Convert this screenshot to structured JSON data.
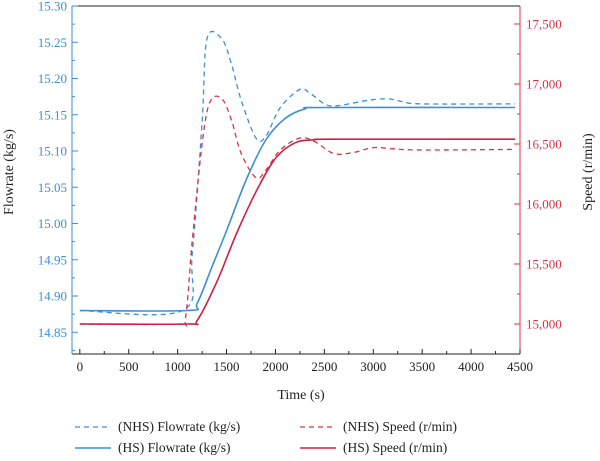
{
  "chart_data": {
    "type": "line",
    "xlabel": "Time (s)",
    "ylabel_left": "Flowrate (kg/s)",
    "ylabel_right": "Speed (r/min)",
    "xlim": [
      -80,
      4500
    ],
    "ylim_left": [
      14.82,
      15.3
    ],
    "ylim_right": [
      14750,
      17650
    ],
    "x_ticks": [
      0,
      500,
      1000,
      1500,
      2000,
      2500,
      3000,
      3500,
      4000,
      4500
    ],
    "x_tick_labels": [
      "0",
      "500",
      "1000",
      "1500",
      "2000",
      "2500",
      "3000",
      "3500",
      "4000",
      "4500"
    ],
    "y_left_ticks": [
      14.85,
      14.9,
      14.95,
      15.0,
      15.05,
      15.1,
      15.15,
      15.2,
      15.25,
      15.3
    ],
    "y_left_tick_labels": [
      "14.85",
      "14.90",
      "14.95",
      "15.00",
      "15.05",
      "15.10",
      "15.15",
      "15.20",
      "15.25",
      "15.30"
    ],
    "y_right_ticks": [
      15000,
      15500,
      16000,
      16500,
      17000,
      17500
    ],
    "y_right_tick_labels": [
      "15,000",
      "15,500",
      "16,000",
      "16,500",
      "17,000",
      "17,500"
    ],
    "grid": false,
    "legend_position": "bottom",
    "colors": {
      "flow": "#3a8fd9",
      "speed": "#dd3344",
      "axis": "#222222"
    },
    "series": [
      {
        "name": "(NHS) Flowrate (kg/s)",
        "axis": "left",
        "style": "dashed",
        "color": "#3a8fd9",
        "points": [
          [
            0,
            14.88
          ],
          [
            1050,
            14.88
          ],
          [
            1150,
            14.96
          ],
          [
            1250,
            15.14
          ],
          [
            1300,
            15.255
          ],
          [
            1450,
            15.255
          ],
          [
            1550,
            15.22
          ],
          [
            1650,
            15.17
          ],
          [
            1800,
            15.118
          ],
          [
            1900,
            15.12
          ],
          [
            2050,
            15.16
          ],
          [
            2250,
            15.185
          ],
          [
            2350,
            15.18
          ],
          [
            2500,
            15.165
          ],
          [
            2600,
            15.162
          ],
          [
            2750,
            15.165
          ],
          [
            2950,
            15.17
          ],
          [
            3150,
            15.172
          ],
          [
            3300,
            15.168
          ],
          [
            3500,
            15.165
          ],
          [
            4450,
            15.165
          ]
        ]
      },
      {
        "name": "(NHS) Speed (r/min)",
        "axis": "right",
        "style": "dashed",
        "color": "#dd3344",
        "points": [
          [
            0,
            15000
          ],
          [
            1000,
            15000
          ],
          [
            1080,
            15050
          ],
          [
            1150,
            15700
          ],
          [
            1250,
            16500
          ],
          [
            1330,
            16850
          ],
          [
            1450,
            16880
          ],
          [
            1550,
            16700
          ],
          [
            1650,
            16420
          ],
          [
            1800,
            16220
          ],
          [
            1900,
            16280
          ],
          [
            2050,
            16450
          ],
          [
            2250,
            16550
          ],
          [
            2400,
            16520
          ],
          [
            2600,
            16420
          ],
          [
            2800,
            16430
          ],
          [
            3000,
            16470
          ],
          [
            3200,
            16460
          ],
          [
            3500,
            16450
          ],
          [
            4450,
            16455
          ]
        ]
      },
      {
        "name": "(HS) Flowrate (kg/s)",
        "axis": "left",
        "style": "solid",
        "color": "#3a8fd9",
        "points": [
          [
            0,
            14.88
          ],
          [
            1100,
            14.88
          ],
          [
            1200,
            14.89
          ],
          [
            1350,
            14.94
          ],
          [
            1500,
            14.99
          ],
          [
            1700,
            15.06
          ],
          [
            1900,
            15.115
          ],
          [
            2100,
            15.145
          ],
          [
            2300,
            15.158
          ],
          [
            2500,
            15.16
          ],
          [
            4450,
            15.16
          ]
        ]
      },
      {
        "name": "(HS) Speed (r/min)",
        "axis": "right",
        "style": "solid",
        "color": "#cc2244",
        "points": [
          [
            0,
            15000
          ],
          [
            1100,
            15000
          ],
          [
            1200,
            15030
          ],
          [
            1400,
            15350
          ],
          [
            1600,
            15750
          ],
          [
            1800,
            16100
          ],
          [
            2000,
            16380
          ],
          [
            2200,
            16510
          ],
          [
            2400,
            16535
          ],
          [
            2600,
            16540
          ],
          [
            4450,
            16540
          ]
        ]
      }
    ],
    "legend": [
      {
        "label": "(NHS) Flowrate (kg/s)",
        "style": "dashed",
        "color": "#3a8fd9"
      },
      {
        "label": "(NHS) Speed (r/min)",
        "style": "dashed",
        "color": "#dd3344"
      },
      {
        "label": "(HS) Flowrate (kg/s)",
        "style": "solid",
        "color": "#3a8fd9"
      },
      {
        "label": "(HS) Speed (r/min)",
        "style": "solid",
        "color": "#cc2244"
      }
    ]
  }
}
